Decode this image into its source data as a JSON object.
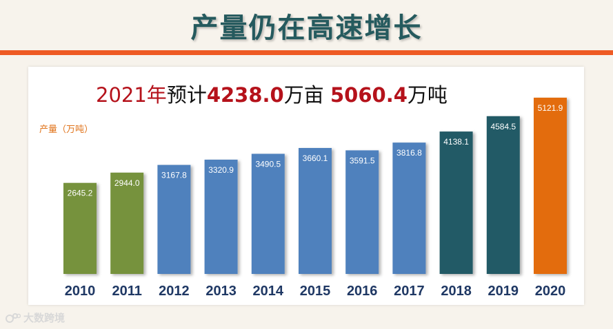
{
  "header": {
    "title": "产量仍在高速增长"
  },
  "headline": {
    "year": "2021年",
    "predict": "预计",
    "area_value": "4238.0",
    "area_unit": "万亩",
    "output_value": "5060.4",
    "output_unit": "万吨"
  },
  "watermark": {
    "text": "大数跨境"
  },
  "colors": {
    "green": "#76923c",
    "blue": "#4f81bd",
    "teal": "#245a66",
    "orange": "#e36c09",
    "rule": "#ee5a24",
    "title": "#255a5e"
  },
  "chart_data": {
    "type": "bar",
    "ylabel": "产量（万吨）",
    "categories": [
      "2010",
      "2011",
      "2012",
      "2013",
      "2014",
      "2015",
      "2016",
      "2017",
      "2018",
      "2019",
      "2020"
    ],
    "values": [
      2645.2,
      2944.0,
      3167.8,
      3320.9,
      3490.5,
      3660.1,
      3591.5,
      3816.8,
      4138.1,
      4584.5,
      5121.9
    ],
    "value_labels": [
      "2645.2",
      "2944.0",
      "3167.8",
      "3320.9",
      "3490.5",
      "3660.1",
      "3591.5",
      "3816.8",
      "4138.1",
      "4584.5",
      "5121.9"
    ],
    "bar_colors": [
      "green",
      "green",
      "blue",
      "blue",
      "blue",
      "blue",
      "blue",
      "blue",
      "teal",
      "teal",
      "orange"
    ],
    "grid": false,
    "legend": "none"
  }
}
